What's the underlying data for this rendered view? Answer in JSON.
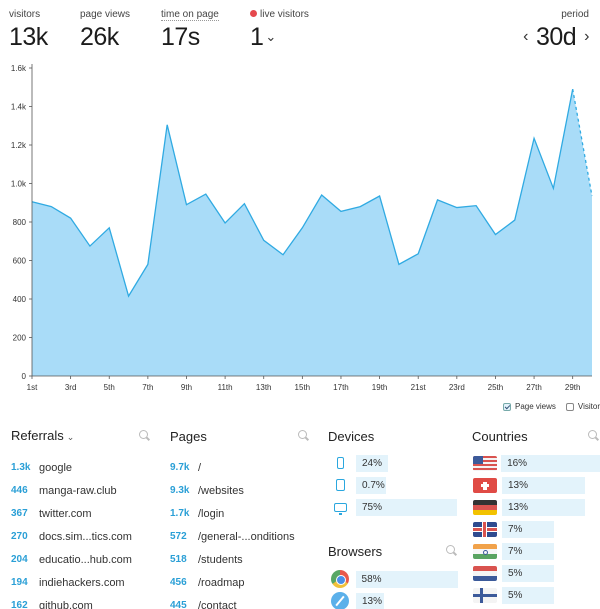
{
  "header": {
    "visitors": {
      "label": "visitors",
      "value": "13k"
    },
    "page_views": {
      "label": "page views",
      "value": "26k"
    },
    "time_on_page": {
      "label": "time on page",
      "value": "17s"
    },
    "live_visitors": {
      "label": "live visitors",
      "value": "1",
      "dot_color": "#e5484d"
    },
    "period": {
      "label": "period",
      "value": "30d",
      "prev": "‹",
      "next": "›"
    }
  },
  "chart_data": {
    "type": "area",
    "x_ticks": [
      "1st",
      "3rd",
      "5th",
      "7th",
      "9th",
      "11th",
      "13th",
      "15th",
      "17th",
      "19th",
      "21st",
      "23rd",
      "25th",
      "27th",
      "29th"
    ],
    "y_ticks": [
      "0",
      "200",
      "400",
      "600",
      "800",
      "1.0k",
      "1.2k",
      "1.4k",
      "1.6k"
    ],
    "ylim": [
      0,
      1600
    ],
    "series": [
      {
        "name": "Page views",
        "color": "#a9dcf8",
        "line_color": "#30aae2",
        "values": [
          905,
          880,
          820,
          675,
          770,
          415,
          580,
          1305,
          890,
          945,
          795,
          895,
          705,
          630,
          770,
          940,
          855,
          880,
          935,
          580,
          635,
          915,
          875,
          885,
          735,
          810,
          1235,
          975,
          1490,
          935
        ],
        "dashed_last_segment": true
      }
    ],
    "grid": false
  },
  "legend": {
    "page_views": "Page views",
    "visitors": "Visitor"
  },
  "referrals": {
    "title": "Referrals",
    "items": [
      {
        "num": "1.3k",
        "label": "google"
      },
      {
        "num": "446",
        "label": "manga-raw.club"
      },
      {
        "num": "367",
        "label": "twitter.com"
      },
      {
        "num": "270",
        "label": "docs.sim...tics.com"
      },
      {
        "num": "204",
        "label": "educatio...hub.com"
      },
      {
        "num": "194",
        "label": "indiehackers.com"
      },
      {
        "num": "162",
        "label": "github.com"
      }
    ]
  },
  "pages": {
    "title": "Pages",
    "items": [
      {
        "num": "9.7k",
        "label": "/"
      },
      {
        "num": "9.3k",
        "label": "/websites"
      },
      {
        "num": "1.7k",
        "label": "/login"
      },
      {
        "num": "572",
        "label": "/general-...onditions"
      },
      {
        "num": "518",
        "label": "/students"
      },
      {
        "num": "456",
        "label": "/roadmap"
      },
      {
        "num": "445",
        "label": "/contact"
      }
    ]
  },
  "devices": {
    "title": "Devices",
    "items": [
      {
        "icon": "phone-icon",
        "value": "24%",
        "share": 0.24
      },
      {
        "icon": "tablet-icon",
        "value": "0.7%",
        "share": 0.007
      },
      {
        "icon": "desktop-icon",
        "value": "75%",
        "share": 0.75
      }
    ]
  },
  "browsers": {
    "title": "Browsers",
    "items": [
      {
        "icon": "chrome-icon",
        "value": "58%",
        "share": 0.58
      },
      {
        "icon": "safari-icon",
        "value": "13%",
        "share": 0.13
      }
    ]
  },
  "countries": {
    "title": "Countries",
    "items": [
      {
        "flag": "us-flag-icon",
        "value": "16%",
        "share": 0.16
      },
      {
        "flag": "ch-flag-icon",
        "value": "13%",
        "share": 0.13
      },
      {
        "flag": "de-flag-icon",
        "value": "13%",
        "share": 0.13
      },
      {
        "flag": "gb-flag-icon",
        "value": "7%",
        "share": 0.07
      },
      {
        "flag": "in-flag-icon",
        "value": "7%",
        "share": 0.07
      },
      {
        "flag": "nl-flag-icon",
        "value": "5%",
        "share": 0.05
      },
      {
        "flag": "fi-flag-icon",
        "value": "5%",
        "share": 0.05
      }
    ]
  }
}
